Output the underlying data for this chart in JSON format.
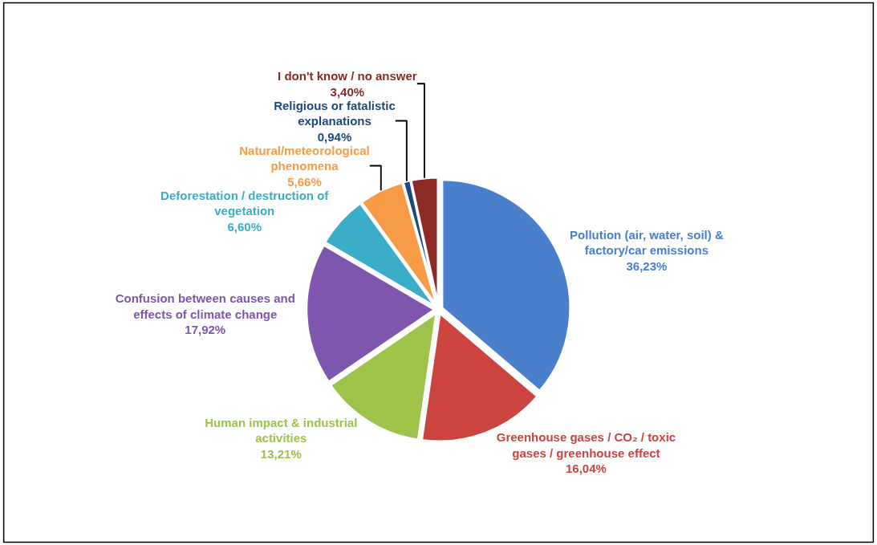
{
  "chart_data": {
    "type": "pie",
    "categories": [
      "Pollution (air, water, soil) & factory/car emissions",
      "Greenhouse gases / CO₂ / toxic gases / greenhouse effect",
      "Human impact & industrial activities",
      "Confusion between causes and effects of climate change",
      "Deforestation / destruction of vegetation",
      "Natural/meteorological phenomena",
      "Religious or fatalistic explanations",
      "I don't know / no answer"
    ],
    "values": [
      36.23,
      16.04,
      13.21,
      17.92,
      6.6,
      5.66,
      0.94,
      3.4
    ],
    "value_labels": [
      "36,23%",
      "16,04%",
      "13,21%",
      "17,92%",
      "6,60%",
      "5,66%",
      "0,94%",
      "3,40%"
    ],
    "colors": [
      "#4a7fcc",
      "#cc4440",
      "#9dc34a",
      "#7f56ad",
      "#3cadc8",
      "#f79b46",
      "#1f497d",
      "#8b2a27"
    ],
    "legend": false
  }
}
